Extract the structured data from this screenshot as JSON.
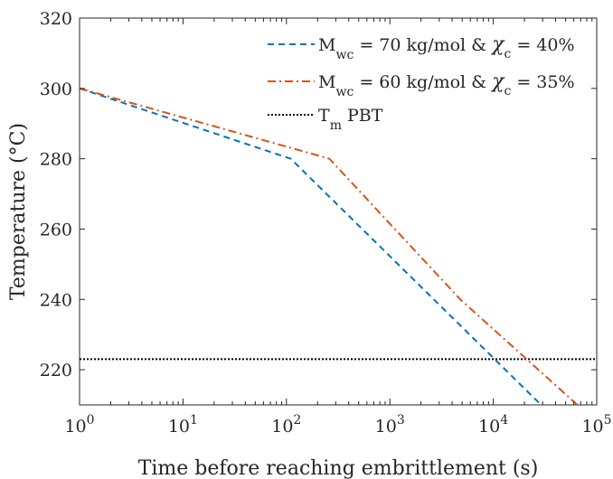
{
  "chart_data": {
    "type": "line",
    "x_scale": "log",
    "xlabel": "Time before reaching embrittlement (s)",
    "ylabel": "Temperature (°C)",
    "xlim": [
      1,
      100000
    ],
    "ylim": [
      210,
      320
    ],
    "x_ticks": [
      {
        "value": 1,
        "base": "10",
        "exp": "0"
      },
      {
        "value": 10,
        "base": "10",
        "exp": "1"
      },
      {
        "value": 100,
        "base": "10",
        "exp": "2"
      },
      {
        "value": 1000,
        "base": "10",
        "exp": "3"
      },
      {
        "value": 10000,
        "base": "10",
        "exp": "4"
      },
      {
        "value": 100000,
        "base": "10",
        "exp": "5"
      }
    ],
    "y_ticks": [
      220,
      240,
      260,
      280,
      300,
      320
    ],
    "grid": false,
    "legend_position": "top-right",
    "series": [
      {
        "legend": {
          "pre": "M",
          "sub": "wc",
          "mid": " = 70 kg/mol & ",
          "chi": "χ",
          "chi_sub": "c",
          "post": " = 40%"
        },
        "color": "#0072BD",
        "dash": "7,5",
        "points": [
          [
            1,
            300
          ],
          [
            110,
            280
          ],
          [
            29000,
            210
          ]
        ]
      },
      {
        "legend": {
          "pre": "M",
          "sub": "wc",
          "mid": " = 60 kg/mol & ",
          "chi": "χ",
          "chi_sub": "c",
          "post": " = 35%"
        },
        "color": "#D95319",
        "dash": "9,4,2,4",
        "points": [
          [
            1,
            300
          ],
          [
            260,
            280
          ],
          [
            4800,
            240
          ],
          [
            65000,
            210
          ]
        ]
      }
    ],
    "reference_line": {
      "y": 223,
      "legend": {
        "pre": "T",
        "sub": "m",
        "post": " PBT"
      },
      "color": "#000000",
      "dash": "2,2"
    }
  }
}
